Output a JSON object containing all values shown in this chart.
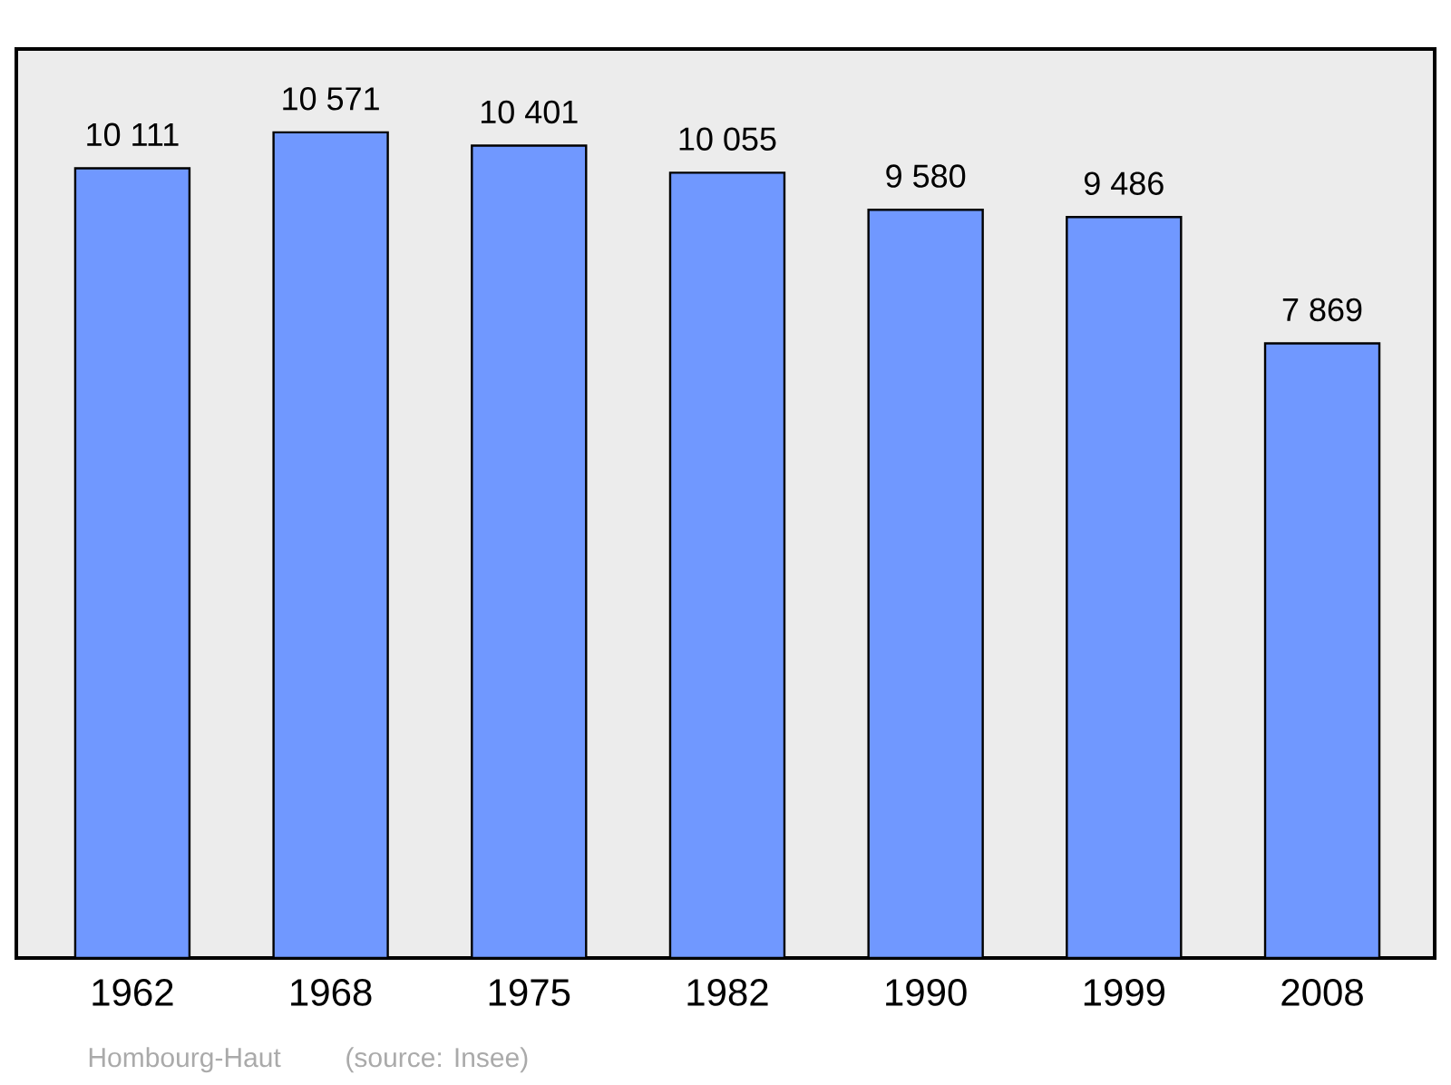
{
  "chart_data": {
    "type": "bar",
    "categories": [
      "1962",
      "1968",
      "1975",
      "1982",
      "1990",
      "1999",
      "2008"
    ],
    "values": [
      10111,
      10571,
      10401,
      10055,
      9580,
      9486,
      7869
    ],
    "value_labels": [
      "10 111",
      "10 571",
      "10 401",
      "10 055",
      "9 580",
      "9 486",
      "7 869"
    ],
    "color": "#7098ff",
    "annotations": [
      "Hombourg-Haut",
      "(source: Insee)"
    ]
  }
}
